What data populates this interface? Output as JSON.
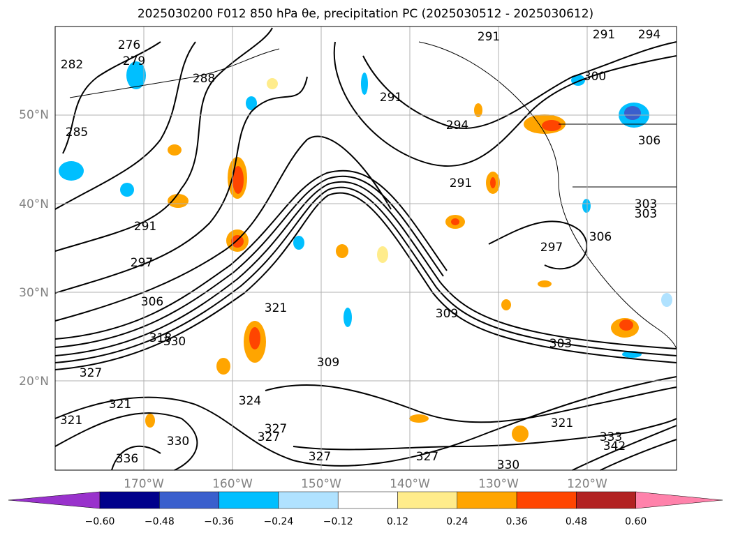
{
  "title": "2025030200 F012 850 hPa θe, precipitation PC (2025030512 - 2025030612)",
  "lat_labels": [
    "50°N",
    "40°N",
    "30°N",
    "20°N"
  ],
  "lon_labels": [
    "170°W",
    "160°W",
    "150°W",
    "140°W",
    "130°W",
    "120°W"
  ],
  "contour_labels": [
    "276",
    "279",
    "282",
    "285",
    "288",
    "291",
    "291",
    "291",
    "291",
    "291",
    "294",
    "294",
    "297",
    "297",
    "300",
    "303",
    "303",
    "303",
    "306",
    "306",
    "306",
    "309",
    "309",
    "318",
    "321",
    "321",
    "321",
    "321",
    "324",
    "327",
    "327",
    "327",
    "327",
    "327",
    "330",
    "330",
    "330",
    "333",
    "336",
    "342"
  ],
  "colorbar": {
    "ticks": [
      "−0.60",
      "−0.48",
      "−0.36",
      "−0.24",
      "−0.12",
      "0.12",
      "0.24",
      "0.36",
      "0.48",
      "0.60"
    ],
    "colors": [
      "#9932cc",
      "#00008b",
      "#3a5fcd",
      "#00bfff",
      "#b0e2ff",
      "#ffffff",
      "#ffec8b",
      "#ffa500",
      "#ff4500",
      "#b22222",
      "#ff82ab"
    ]
  },
  "map": {
    "lat_range": [
      10,
      60
    ],
    "lon_range": [
      -180,
      -110
    ],
    "gridlines": true
  }
}
